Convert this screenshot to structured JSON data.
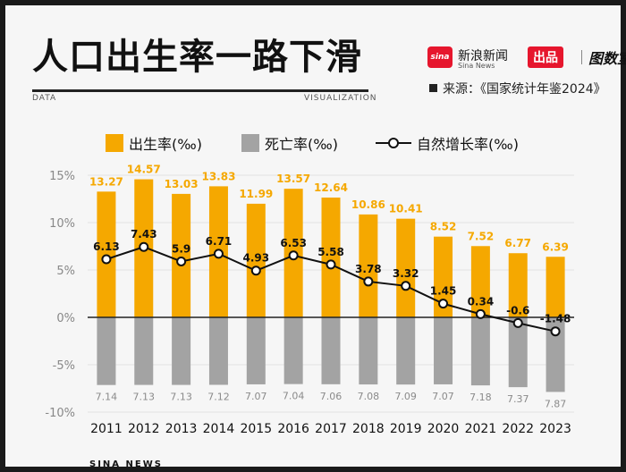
{
  "header": {
    "title": "人口出生率一路下滑",
    "tag_left": "DATA",
    "tag_right": "VISUALIZATION"
  },
  "brand": {
    "logo_text": "sina",
    "name": "新浪新闻",
    "sub": "Sina News",
    "chupin": "出品",
    "shujushi": "图数室"
  },
  "source": "来源：《国家统计年鉴2024》",
  "legend": {
    "birth": "出生率(‰)",
    "death": "死亡率(‰)",
    "growth": "自然增长率(‰)"
  },
  "footer": "SINA NEWS",
  "colors": {
    "birth": "#f5a800",
    "death": "#a3a3a3",
    "line": "#111111",
    "birth_label": "#f5a800",
    "death_label": "#8a8a8a"
  },
  "chart_data": {
    "type": "bar",
    "categories": [
      "2011",
      "2012",
      "2013",
      "2014",
      "2015",
      "2016",
      "2017",
      "2018",
      "2019",
      "2020",
      "2021",
      "2022",
      "2023"
    ],
    "series": [
      {
        "name": "出生率(‰)",
        "type": "bar",
        "values": [
          13.27,
          14.57,
          13.03,
          13.83,
          11.99,
          13.57,
          12.64,
          10.86,
          10.41,
          8.52,
          7.52,
          6.77,
          6.39
        ]
      },
      {
        "name": "死亡率(‰)",
        "type": "bar",
        "values": [
          7.14,
          7.13,
          7.13,
          7.12,
          7.07,
          7.04,
          7.06,
          7.08,
          7.09,
          7.07,
          7.18,
          7.37,
          7.87
        ]
      },
      {
        "name": "自然增长率(‰)",
        "type": "line",
        "values": [
          6.13,
          7.43,
          5.9,
          6.71,
          4.93,
          6.53,
          5.58,
          3.78,
          3.32,
          1.45,
          0.34,
          -0.6,
          -1.48
        ]
      }
    ],
    "data_labels": {
      "birth": [
        "13.27",
        "14.57",
        "13.03",
        "13.83",
        "11.99",
        "13.57",
        "12.64",
        "10.86",
        "10.41",
        "8.52",
        "7.52",
        "6.77",
        "6.39"
      ],
      "death": [
        "7.14",
        "7.13",
        "7.13",
        "7.12",
        "7.07",
        "7.04",
        "7.06",
        "7.08",
        "7.09",
        "7.07",
        "7.18",
        "7.37",
        "7.87"
      ],
      "growth": [
        "6.13",
        "7.43",
        "5.9",
        "6.71",
        "4.93",
        "6.53",
        "5.58",
        "3.78",
        "3.32",
        "1.45",
        "0.34",
        "-0.6",
        "-1.48"
      ]
    },
    "yticks": [
      {
        "value": 15,
        "label": "15%"
      },
      {
        "value": 10,
        "label": "10%"
      },
      {
        "value": 5,
        "label": "5%"
      },
      {
        "value": 0,
        "label": "0%"
      },
      {
        "value": -5,
        "label": "-5%"
      },
      {
        "value": -10,
        "label": "-10%"
      }
    ],
    "ylim": [
      -10,
      15
    ],
    "grid": true,
    "legend_position": "top"
  }
}
